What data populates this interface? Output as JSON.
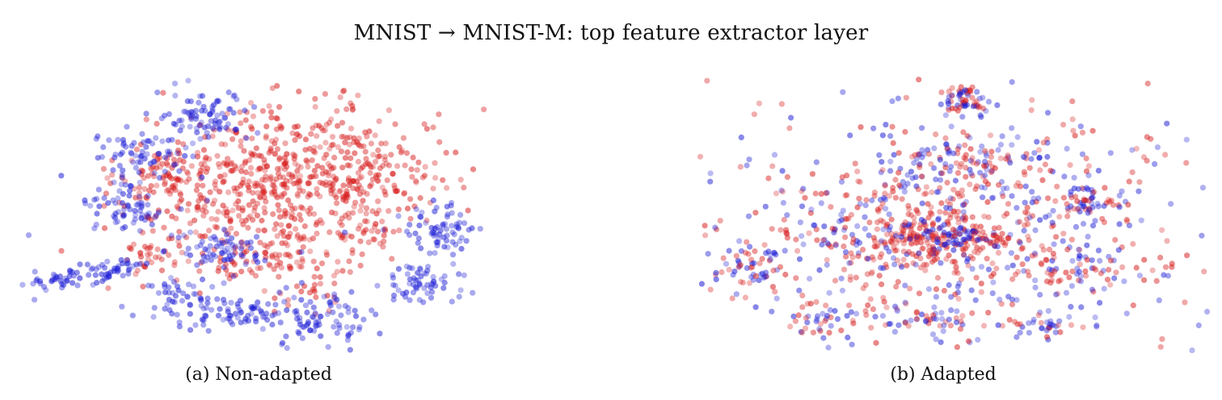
{
  "title": "MNIST → MNIST-M: top feature extractor layer",
  "colors": {
    "source": "#1d1dd6",
    "target": "#d81e1e"
  },
  "chart_data": [
    {
      "type": "scatter",
      "caption": "(a) Non-adapted",
      "xlim": [
        0,
        100
      ],
      "ylim": [
        0,
        100
      ],
      "grid": false,
      "legend": "none",
      "clusters": [
        {
          "domain": "target",
          "cx": 52,
          "cy": 62,
          "sx": 13,
          "sy": 14,
          "n": 520
        },
        {
          "domain": "target",
          "cx": 67,
          "cy": 66,
          "sx": 9,
          "sy": 9,
          "n": 120
        },
        {
          "domain": "target",
          "cx": 31,
          "cy": 62,
          "sx": 7,
          "sy": 8,
          "n": 100
        },
        {
          "domain": "target",
          "cx": 48,
          "cy": 34,
          "sx": 8,
          "sy": 7,
          "n": 80
        },
        {
          "domain": "target",
          "cx": 25,
          "cy": 35,
          "sx": 2.5,
          "sy": 4,
          "n": 28
        },
        {
          "domain": "target",
          "cx": 70,
          "cy": 43,
          "sx": 3,
          "sy": 3,
          "n": 24
        },
        {
          "domain": "target",
          "cx": 58,
          "cy": 20,
          "sx": 3,
          "sy": 3,
          "n": 16
        },
        {
          "domain": "target",
          "cx": 64,
          "cy": 90,
          "sx": 1,
          "sy": 1,
          "n": 5
        },
        {
          "domain": "source",
          "cx": 36,
          "cy": 87,
          "sx": 5,
          "sy": 5,
          "n": 80
        },
        {
          "domain": "source",
          "cx": 24,
          "cy": 73,
          "sx": 5,
          "sy": 4,
          "n": 70
        },
        {
          "domain": "source",
          "cx": 21,
          "cy": 53,
          "sx": 4,
          "sy": 5,
          "n": 70
        },
        {
          "domain": "source",
          "cx": 40,
          "cy": 37,
          "sx": 4,
          "sy": 4,
          "n": 60
        },
        {
          "domain": "source",
          "cx": 83,
          "cy": 44,
          "sx": 3,
          "sy": 4,
          "n": 70
        },
        {
          "domain": "source",
          "cx": 79,
          "cy": 25,
          "sx": 4,
          "sy": 4,
          "n": 60
        },
        {
          "domain": "source",
          "cx": 40,
          "cy": 14,
          "sx": 6,
          "sy": 3,
          "n": 75
        },
        {
          "domain": "source",
          "cx": 58,
          "cy": 11,
          "sx": 5,
          "sy": 5,
          "n": 85
        },
        {
          "domain": "source",
          "cx": 12,
          "cy": 28,
          "sx": 10,
          "sy": 2,
          "n": 90,
          "rot": -0.35
        },
        {
          "domain": "source",
          "cx": 32,
          "cy": 22,
          "sx": 4,
          "sy": 3,
          "n": 30
        },
        {
          "domain": "mixed",
          "cx": 45,
          "cy": 40,
          "sx": 15,
          "sy": 15,
          "n": 30
        }
      ]
    },
    {
      "type": "scatter",
      "caption": "(b) Adapted",
      "xlim": [
        0,
        100
      ],
      "ylim": [
        0,
        100
      ],
      "grid": false,
      "legend": "none",
      "clusters": [
        {
          "domain": "target",
          "cx": 47,
          "cy": 42,
          "sx": 9,
          "sy": 6,
          "n": 220
        },
        {
          "domain": "source",
          "cx": 50,
          "cy": 42,
          "sx": 3,
          "sy": 2,
          "n": 40
        },
        {
          "domain": "mixed",
          "cx": 50,
          "cy": 45,
          "sx": 25,
          "sy": 21,
          "n": 620
        },
        {
          "domain": "mixed",
          "cx": 52,
          "cy": 92,
          "sx": 3,
          "sy": 3,
          "n": 60
        },
        {
          "domain": "mixed",
          "cx": 53,
          "cy": 70,
          "sx": 8,
          "sy": 4,
          "n": 80
        },
        {
          "domain": "mixed",
          "cx": 11,
          "cy": 31,
          "sx": 3,
          "sy": 3,
          "n": 45
        },
        {
          "domain": "mixed",
          "cx": 76,
          "cy": 55,
          "sx": 4,
          "sy": 3,
          "n": 40
        },
        {
          "domain": "mixed",
          "cx": 75,
          "cy": 30,
          "sx": 4,
          "sy": 4,
          "n": 40
        },
        {
          "domain": "mixed",
          "cx": 25,
          "cy": 12,
          "sx": 4,
          "sy": 3,
          "n": 35
        },
        {
          "domain": "mixed",
          "cx": 44,
          "cy": 12,
          "sx": 5,
          "sy": 2,
          "n": 35
        },
        {
          "domain": "mixed",
          "cx": 68,
          "cy": 10,
          "sx": 4,
          "sy": 2,
          "n": 30
        },
        {
          "domain": "mixed",
          "cx": 50,
          "cy": 48,
          "sx": 40,
          "sy": 25,
          "n": 140
        }
      ]
    }
  ]
}
